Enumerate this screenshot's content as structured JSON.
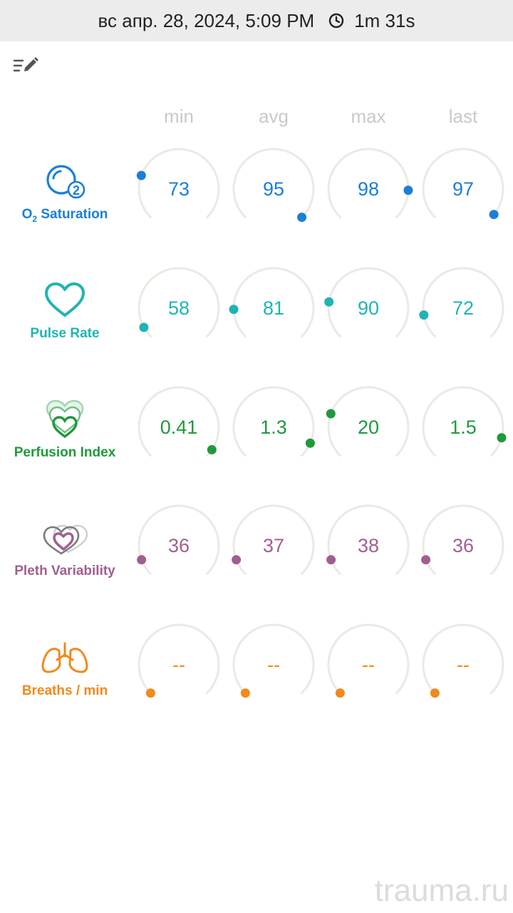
{
  "header": {
    "datetime": "вс апр. 28, 2024, 5:09 PM",
    "duration": "1m 31s"
  },
  "columns": [
    "min",
    "avg",
    "max",
    "last"
  ],
  "metrics": [
    {
      "key": "o2",
      "label_main": "O",
      "label_sub": "2",
      "label_rest": " Saturation",
      "color": "#1a7fd6",
      "icon": "o2-icon",
      "values": [
        "73",
        "95",
        "98",
        "97"
      ],
      "levels": [
        0.24,
        1.0,
        0.84,
        0.98
      ]
    },
    {
      "key": "pulse",
      "label": "Pulse Rate",
      "color": "#1fb4b4",
      "icon": "heart-icon",
      "values": [
        "58",
        "81",
        "90",
        "72"
      ],
      "levels": [
        0.06,
        0.16,
        0.2,
        0.13
      ]
    },
    {
      "key": "pi",
      "label": "Perfusion Index",
      "color": "#1e9a3c",
      "icon": "perfusion-hearts-icon",
      "values": [
        "0.41",
        "1.3",
        "20",
        "1.5"
      ],
      "levels": [
        0.96,
        0.92,
        0.24,
        0.89
      ]
    },
    {
      "key": "pvi",
      "label": "Pleth Variability",
      "color": "#a05f8e",
      "icon": "pleth-hearts-icon",
      "values": [
        "36",
        "37",
        "38",
        "36"
      ],
      "levels": [
        0.09,
        0.09,
        0.09,
        0.09
      ]
    },
    {
      "key": "rr",
      "label": "Breaths / min",
      "color": "#f08a1c",
      "icon": "lungs-icon",
      "values": [
        "--",
        "--",
        "--",
        "--"
      ],
      "levels": [
        0,
        0,
        0,
        0
      ]
    }
  ],
  "watermark": "trauma.ru"
}
